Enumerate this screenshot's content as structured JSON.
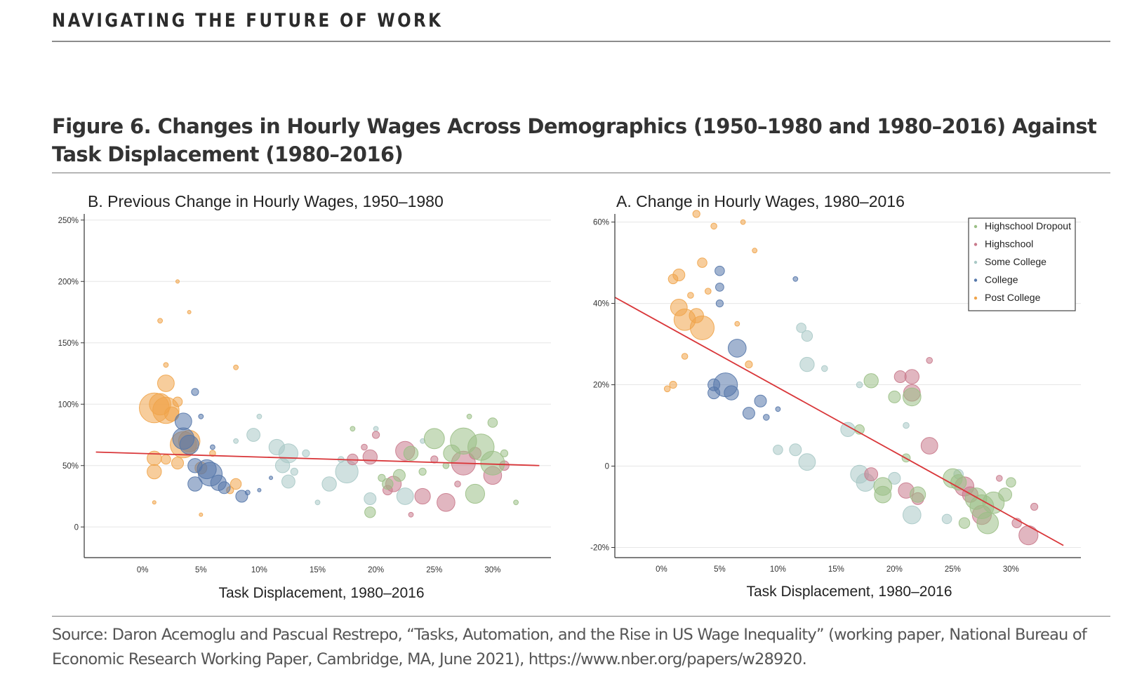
{
  "header": {
    "title": "NAVIGATING THE FUTURE OF WORK"
  },
  "figure": {
    "title": "Figure 6. Changes in Hourly Wages Across Demographics (1950–1980 and 1980–2016) Against Task Displacement (1980–2016)"
  },
  "source": "Source: Daron Acemoglu and Pascual Restrepo, “Tasks, Automation, and the Rise in US Wage Inequality” (working paper, National Bureau of Economic Research Working Paper, Cambridge, MA, June 2021), https://www.nber.org/papers/w28920.",
  "colors": {
    "Highschool Dropout": "#9bbf86",
    "Highschool": "#c97a8c",
    "Some College": "#a9c9c6",
    "College": "#5577aa",
    "Post College": "#f0a44a",
    "fit_line": "#d9373a"
  },
  "chart_data": [
    {
      "type": "scatter",
      "title": "B. Previous Change in Hourly Wages, 1950–1980",
      "xlabel": "Task Displacement, 1980–2016",
      "ylabel": "",
      "xlim": [
        -0.05,
        0.35
      ],
      "ylim": [
        -0.25,
        2.55
      ],
      "xticks": [
        0,
        0.05,
        0.1,
        0.15,
        0.2,
        0.25,
        0.3
      ],
      "xtick_labels": [
        "0%",
        "5%",
        "10%",
        "15%",
        "20%",
        "25%",
        "30%"
      ],
      "yticks": [
        0,
        0.5,
        1.0,
        1.5,
        2.0,
        2.5
      ],
      "ytick_labels": [
        "0",
        "50%",
        "100%",
        "150%",
        "200%",
        "250%"
      ],
      "grid": true,
      "legend": "none",
      "fit_line": {
        "x": [
          -0.04,
          0.34
        ],
        "y": [
          0.61,
          0.5
        ]
      },
      "series": [
        {
          "name": "Post College",
          "points": [
            [
              0.01,
              0.97,
              2.5
            ],
            [
              0.02,
              0.95,
              2.2
            ],
            [
              0.015,
              1.0,
              1.8
            ],
            [
              0.02,
              1.17,
              1.4
            ],
            [
              0.025,
              0.92,
              1.2
            ],
            [
              0.01,
              0.56,
              1.2
            ],
            [
              0.01,
              0.45,
              1.2
            ],
            [
              0.035,
              0.67,
              2.2
            ],
            [
              0.04,
              0.7,
              1.8
            ],
            [
              0.03,
              0.52,
              1.0
            ],
            [
              0.02,
              0.55,
              0.8
            ],
            [
              0.05,
              0.48,
              1.0
            ],
            [
              0.08,
              0.35,
              0.9
            ],
            [
              0.075,
              0.3,
              0.6
            ],
            [
              0.03,
              1.02,
              0.8
            ],
            [
              0.015,
              1.68,
              0.4
            ],
            [
              0.02,
              1.32,
              0.4
            ],
            [
              0.04,
              1.75,
              0.3
            ],
            [
              0.08,
              1.3,
              0.4
            ],
            [
              0.03,
              2.0,
              0.3
            ],
            [
              0.01,
              0.2,
              0.3
            ],
            [
              0.05,
              0.1,
              0.3
            ],
            [
              0.06,
              0.6,
              0.5
            ]
          ]
        },
        {
          "name": "College",
          "points": [
            [
              0.035,
              0.86,
              1.4
            ],
            [
              0.035,
              0.72,
              1.8
            ],
            [
              0.04,
              0.67,
              1.6
            ],
            [
              0.045,
              0.5,
              1.2
            ],
            [
              0.058,
              0.43,
              2.0
            ],
            [
              0.055,
              0.47,
              1.6
            ],
            [
              0.045,
              0.35,
              1.2
            ],
            [
              0.065,
              0.36,
              1.3
            ],
            [
              0.07,
              0.32,
              1.0
            ],
            [
              0.085,
              0.25,
              1.0
            ],
            [
              0.045,
              1.1,
              0.6
            ],
            [
              0.09,
              0.28,
              0.4
            ],
            [
              0.05,
              0.9,
              0.4
            ],
            [
              0.06,
              0.65,
              0.4
            ],
            [
              0.1,
              0.3,
              0.3
            ],
            [
              0.11,
              0.4,
              0.3
            ]
          ]
        },
        {
          "name": "Some College",
          "points": [
            [
              0.095,
              0.75,
              1.1
            ],
            [
              0.115,
              0.65,
              1.3
            ],
            [
              0.125,
              0.6,
              1.6
            ],
            [
              0.12,
              0.5,
              1.2
            ],
            [
              0.125,
              0.37,
              1.1
            ],
            [
              0.16,
              0.35,
              1.2
            ],
            [
              0.175,
              0.45,
              1.9
            ],
            [
              0.195,
              0.23,
              1.0
            ],
            [
              0.225,
              0.25,
              1.4
            ],
            [
              0.14,
              0.6,
              0.6
            ],
            [
              0.13,
              0.45,
              0.6
            ],
            [
              0.17,
              0.55,
              0.5
            ],
            [
              0.1,
              0.9,
              0.4
            ],
            [
              0.08,
              0.7,
              0.4
            ],
            [
              0.15,
              0.2,
              0.4
            ],
            [
              0.2,
              0.8,
              0.4
            ],
            [
              0.24,
              0.7,
              0.4
            ]
          ]
        },
        {
          "name": "Highschool",
          "points": [
            [
              0.18,
              0.55,
              0.9
            ],
            [
              0.195,
              0.57,
              1.2
            ],
            [
              0.2,
              0.75,
              0.6
            ],
            [
              0.21,
              0.3,
              0.8
            ],
            [
              0.225,
              0.62,
              1.6
            ],
            [
              0.215,
              0.35,
              1.3
            ],
            [
              0.24,
              0.25,
              1.3
            ],
            [
              0.26,
              0.2,
              1.5
            ],
            [
              0.275,
              0.52,
              2.0
            ],
            [
              0.3,
              0.42,
              1.5
            ],
            [
              0.285,
              0.6,
              1.0
            ],
            [
              0.25,
              0.55,
              0.6
            ],
            [
              0.19,
              0.65,
              0.5
            ],
            [
              0.31,
              0.5,
              0.8
            ],
            [
              0.23,
              0.1,
              0.4
            ],
            [
              0.27,
              0.35,
              0.5
            ]
          ]
        },
        {
          "name": "Highschool Dropout",
          "points": [
            [
              0.21,
              0.35,
              0.9
            ],
            [
              0.22,
              0.42,
              1.0
            ],
            [
              0.23,
              0.6,
              1.2
            ],
            [
              0.25,
              0.72,
              1.7
            ],
            [
              0.265,
              0.6,
              1.4
            ],
            [
              0.275,
              0.7,
              2.2
            ],
            [
              0.29,
              0.65,
              2.2
            ],
            [
              0.3,
              0.52,
              2.0
            ],
            [
              0.285,
              0.27,
              1.6
            ],
            [
              0.195,
              0.12,
              0.9
            ],
            [
              0.205,
              0.4,
              0.6
            ],
            [
              0.24,
              0.45,
              0.6
            ],
            [
              0.3,
              0.85,
              0.8
            ],
            [
              0.26,
              0.5,
              0.5
            ],
            [
              0.31,
              0.6,
              0.6
            ],
            [
              0.18,
              0.8,
              0.4
            ],
            [
              0.28,
              0.9,
              0.4
            ],
            [
              0.32,
              0.2,
              0.4
            ]
          ]
        }
      ]
    },
    {
      "type": "scatter",
      "title": "A. Change in Hourly Wages, 1980–2016",
      "xlabel": "Task Displacement, 1980–2016",
      "ylabel": "",
      "xlim": [
        -0.04,
        0.36
      ],
      "ylim": [
        -0.225,
        0.62
      ],
      "xticks": [
        0,
        0.05,
        0.1,
        0.15,
        0.2,
        0.25,
        0.3
      ],
      "xtick_labels": [
        "0%",
        "5%",
        "10%",
        "15%",
        "20%",
        "25%",
        "30%"
      ],
      "yticks": [
        -0.2,
        0,
        0.2,
        0.4,
        0.6
      ],
      "ytick_labels": [
        "-20%",
        "0",
        "20%",
        "40%",
        "60%"
      ],
      "grid": true,
      "legend": "top-right",
      "legend_entries": [
        "Highschool Dropout",
        "Highschool",
        "Some College",
        "College",
        "Post College"
      ],
      "fit_line": {
        "x": [
          -0.04,
          0.345
        ],
        "y": [
          0.415,
          -0.195
        ]
      },
      "series": [
        {
          "name": "Post College",
          "points": [
            [
              0.015,
              0.39,
              1.4
            ],
            [
              0.02,
              0.36,
              1.8
            ],
            [
              0.035,
              0.34,
              2.0
            ],
            [
              0.03,
              0.37,
              1.2
            ],
            [
              0.015,
              0.47,
              1.0
            ],
            [
              0.01,
              0.46,
              0.8
            ],
            [
              0.035,
              0.5,
              0.8
            ],
            [
              0.03,
              0.62,
              0.6
            ],
            [
              0.045,
              0.59,
              0.5
            ],
            [
              0.01,
              0.2,
              0.6
            ],
            [
              0.005,
              0.19,
              0.5
            ],
            [
              0.02,
              0.27,
              0.5
            ],
            [
              0.04,
              0.43,
              0.5
            ],
            [
              0.075,
              0.25,
              0.6
            ],
            [
              0.08,
              0.53,
              0.4
            ],
            [
              0.07,
              0.6,
              0.4
            ],
            [
              0.065,
              0.35,
              0.4
            ],
            [
              0.025,
              0.42,
              0.5
            ]
          ]
        },
        {
          "name": "College",
          "points": [
            [
              0.045,
              0.2,
              1.0
            ],
            [
              0.055,
              0.2,
              2.0
            ],
            [
              0.065,
              0.29,
              1.5
            ],
            [
              0.06,
              0.18,
              1.2
            ],
            [
              0.045,
              0.18,
              1.0
            ],
            [
              0.085,
              0.16,
              1.0
            ],
            [
              0.075,
              0.13,
              1.0
            ],
            [
              0.05,
              0.48,
              0.8
            ],
            [
              0.05,
              0.44,
              0.7
            ],
            [
              0.05,
              0.4,
              0.6
            ],
            [
              0.09,
              0.12,
              0.5
            ],
            [
              0.1,
              0.14,
              0.4
            ],
            [
              0.115,
              0.46,
              0.4
            ]
          ]
        },
        {
          "name": "Some College",
          "points": [
            [
              0.12,
              0.34,
              0.8
            ],
            [
              0.125,
              0.32,
              0.9
            ],
            [
              0.125,
              0.25,
              1.2
            ],
            [
              0.1,
              0.04,
              0.8
            ],
            [
              0.115,
              0.04,
              1.0
            ],
            [
              0.125,
              0.01,
              1.4
            ],
            [
              0.17,
              -0.02,
              1.5
            ],
            [
              0.175,
              -0.04,
              1.5
            ],
            [
              0.215,
              -0.12,
              1.5
            ],
            [
              0.16,
              0.09,
              1.2
            ],
            [
              0.2,
              -0.03,
              1.0
            ],
            [
              0.245,
              -0.13,
              0.8
            ],
            [
              0.255,
              -0.02,
              0.8
            ],
            [
              0.14,
              0.24,
              0.5
            ],
            [
              0.21,
              0.1,
              0.5
            ],
            [
              0.17,
              0.2,
              0.5
            ]
          ]
        },
        {
          "name": "Highschool",
          "points": [
            [
              0.205,
              0.22,
              1.0
            ],
            [
              0.215,
              0.22,
              1.2
            ],
            [
              0.215,
              0.18,
              1.4
            ],
            [
              0.23,
              0.05,
              1.4
            ],
            [
              0.26,
              -0.05,
              1.6
            ],
            [
              0.265,
              -0.07,
              1.3
            ],
            [
              0.275,
              -0.12,
              1.6
            ],
            [
              0.315,
              -0.17,
              1.6
            ],
            [
              0.18,
              -0.02,
              1.1
            ],
            [
              0.21,
              -0.06,
              1.3
            ],
            [
              0.22,
              -0.08,
              1.0
            ],
            [
              0.305,
              -0.14,
              0.8
            ],
            [
              0.32,
              -0.1,
              0.6
            ],
            [
              0.23,
              0.26,
              0.5
            ],
            [
              0.29,
              -0.03,
              0.5
            ]
          ]
        },
        {
          "name": "Highschool Dropout",
          "points": [
            [
              0.18,
              0.21,
              1.2
            ],
            [
              0.2,
              0.17,
              1.0
            ],
            [
              0.215,
              0.17,
              1.5
            ],
            [
              0.19,
              -0.05,
              1.5
            ],
            [
              0.19,
              -0.07,
              1.4
            ],
            [
              0.22,
              -0.07,
              1.3
            ],
            [
              0.25,
              -0.03,
              1.6
            ],
            [
              0.255,
              -0.04,
              1.3
            ],
            [
              0.27,
              -0.08,
              1.8
            ],
            [
              0.275,
              -0.1,
              2.0
            ],
            [
              0.285,
              -0.09,
              1.8
            ],
            [
              0.28,
              -0.14,
              1.8
            ],
            [
              0.295,
              -0.07,
              1.1
            ],
            [
              0.3,
              -0.04,
              0.8
            ],
            [
              0.17,
              0.09,
              0.8
            ],
            [
              0.26,
              -0.14,
              0.9
            ],
            [
              0.21,
              0.02,
              0.7
            ]
          ]
        }
      ]
    }
  ]
}
